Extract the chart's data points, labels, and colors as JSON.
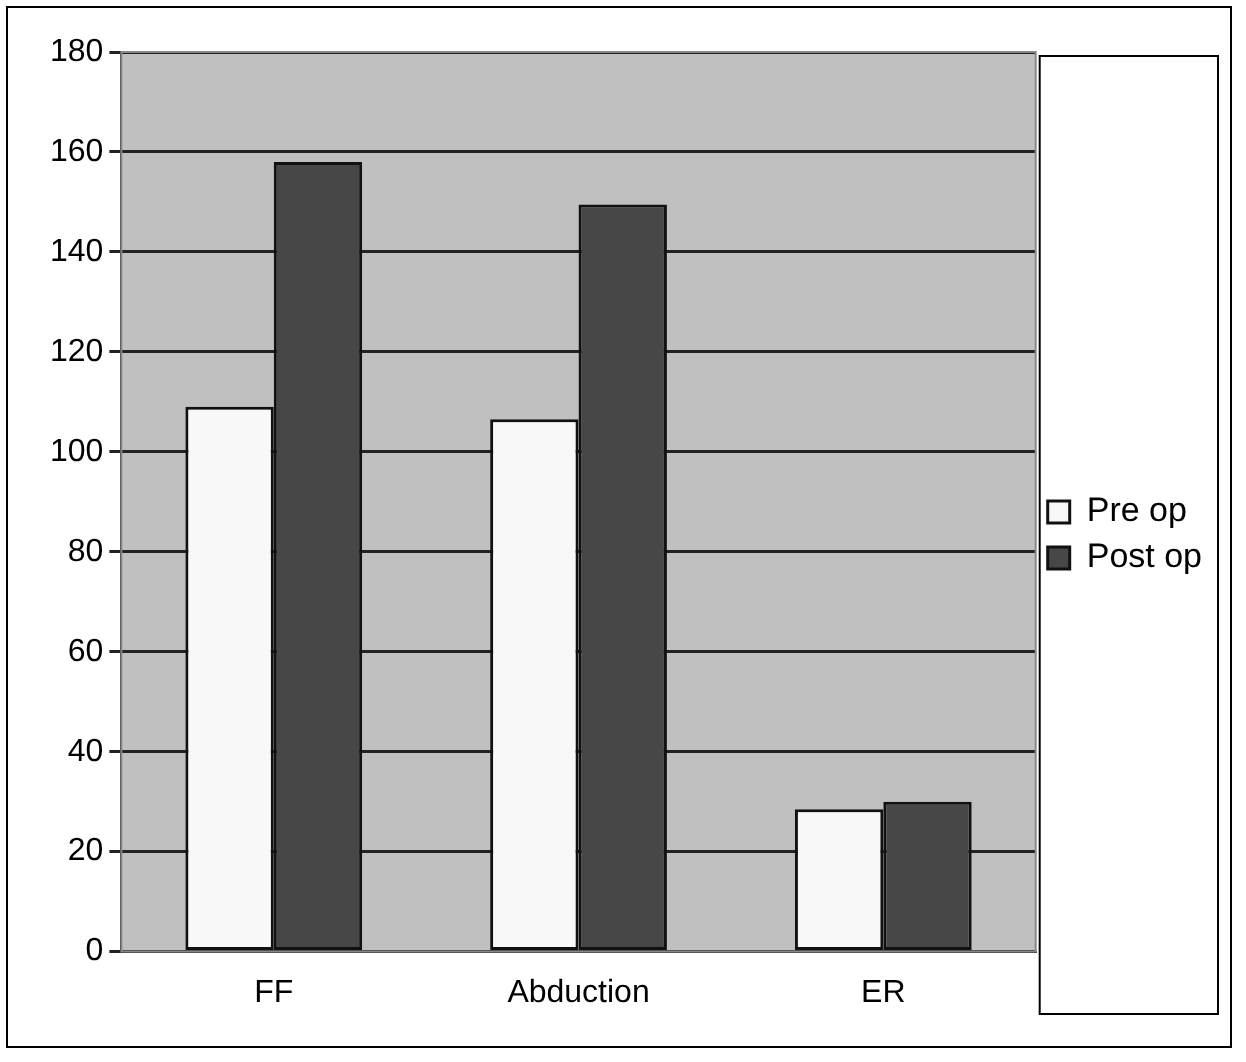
{
  "chart_data": {
    "type": "bar",
    "categories": [
      "FF",
      "Abduction",
      "ER"
    ],
    "series": [
      {
        "name": "Pre op",
        "color": "#f8f8f8",
        "values": [
          109,
          106.5,
          28.5
        ]
      },
      {
        "name": "Post op",
        "color": "#474747",
        "values": [
          158,
          149.5,
          30
        ]
      }
    ],
    "ylim": [
      0,
      180
    ],
    "yticks": [
      0,
      20,
      40,
      60,
      80,
      100,
      120,
      140,
      160,
      180
    ],
    "grid": "y",
    "legend": "right"
  }
}
